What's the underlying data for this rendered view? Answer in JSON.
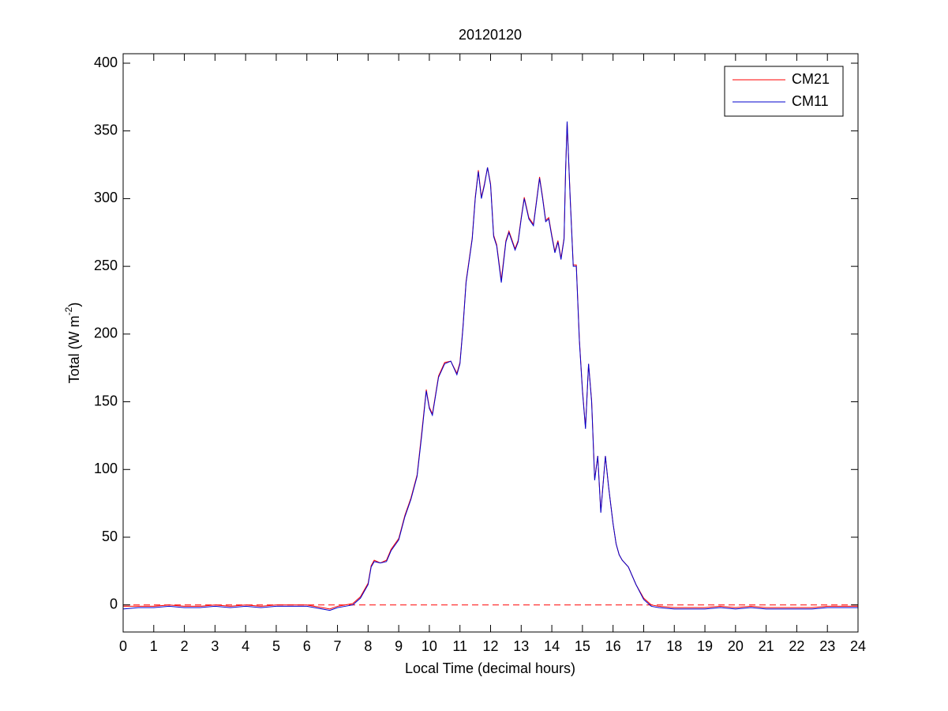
{
  "chart_data": {
    "type": "line",
    "title": "20120120",
    "xlabel": "Local Time (decimal hours)",
    "ylabel": {
      "text": "Total (W m",
      "sup": "-2",
      "end": ")"
    },
    "xlim": [
      0,
      24
    ],
    "xticks": [
      0,
      1,
      2,
      3,
      4,
      5,
      6,
      7,
      8,
      9,
      10,
      11,
      12,
      13,
      14,
      15,
      16,
      17,
      18,
      19,
      20,
      21,
      22,
      23,
      24
    ],
    "ylim": [
      -20,
      407
    ],
    "yticks": [
      0,
      50,
      100,
      150,
      200,
      250,
      300,
      350,
      400
    ],
    "legend": "northeast",
    "reference_line": {
      "value": 0,
      "color": "#ff0000",
      "style": "dashed"
    },
    "x": [
      0,
      0.5,
      1,
      1.5,
      2,
      2.5,
      3,
      3.5,
      4,
      4.5,
      5,
      5.5,
      6,
      6.5,
      6.75,
      7,
      7.25,
      7.5,
      7.75,
      8,
      8.1,
      8.2,
      8.4,
      8.6,
      8.75,
      9,
      9.2,
      9.4,
      9.6,
      9.75,
      9.9,
      10,
      10.1,
      10.3,
      10.5,
      10.7,
      10.9,
      11,
      11.1,
      11.2,
      11.4,
      11.5,
      11.6,
      11.7,
      11.8,
      11.9,
      12,
      12.1,
      12.2,
      12.35,
      12.5,
      12.6,
      12.8,
      12.9,
      13,
      13.1,
      13.25,
      13.4,
      13.6,
      13.7,
      13.8,
      13.9,
      14,
      14.1,
      14.2,
      14.3,
      14.4,
      14.45,
      14.5,
      14.6,
      14.7,
      14.8,
      14.9,
      15,
      15.1,
      15.2,
      15.3,
      15.4,
      15.5,
      15.6,
      15.75,
      15.85,
      16,
      16.1,
      16.2,
      16.3,
      16.5,
      16.75,
      17,
      17.25,
      17.5,
      18,
      18.5,
      19,
      19.5,
      20,
      20.5,
      21,
      21.5,
      22,
      22.5,
      23,
      23.5,
      24
    ],
    "series": [
      {
        "name": "CM21",
        "color": "#ff0000",
        "values": [
          -1,
          -1,
          -1,
          0,
          -1,
          -1,
          0,
          -1,
          0,
          -1,
          0,
          0,
          0,
          -2,
          -3,
          -1,
          0,
          1,
          6,
          16,
          29,
          33,
          31,
          33,
          41,
          49,
          66,
          79,
          96,
          127,
          159,
          146,
          141,
          169,
          179,
          180,
          171,
          179,
          206,
          239,
          271,
          301,
          321,
          301,
          311,
          323,
          311,
          273,
          266,
          240,
          269,
          276,
          263,
          269,
          286,
          301,
          286,
          281,
          316,
          301,
          284,
          286,
          273,
          261,
          269,
          256,
          271,
          321,
          356,
          301,
          251,
          251,
          196,
          159,
          131,
          178,
          151,
          93,
          110,
          69,
          110,
          88,
          60,
          45,
          37,
          33,
          28,
          15,
          5,
          0,
          -1,
          -2,
          -2,
          -2,
          -1,
          -2,
          -1,
          -2,
          -2,
          -2,
          -2,
          -1,
          -1,
          -1
        ]
      },
      {
        "name": "CM11",
        "color": "#0000cc",
        "values": [
          -3,
          -2,
          -2,
          -1,
          -2,
          -2,
          -1,
          -2,
          -1,
          -2,
          -1,
          -1,
          -1,
          -3,
          -4,
          -2,
          -1,
          0,
          5,
          15,
          28,
          32,
          31,
          32,
          40,
          48,
          65,
          78,
          95,
          125,
          158,
          145,
          140,
          168,
          178,
          180,
          170,
          178,
          205,
          238,
          270,
          300,
          320,
          300,
          310,
          323,
          310,
          272,
          265,
          238,
          268,
          275,
          262,
          268,
          285,
          300,
          285,
          280,
          315,
          300,
          283,
          285,
          272,
          260,
          268,
          255,
          270,
          320,
          357,
          300,
          250,
          250,
          195,
          158,
          130,
          178,
          150,
          92,
          110,
          68,
          110,
          88,
          60,
          45,
          37,
          33,
          28,
          15,
          4,
          -1,
          -2,
          -3,
          -3,
          -3,
          -2,
          -3,
          -2,
          -3,
          -3,
          -3,
          -3,
          -2,
          -2,
          -2
        ]
      }
    ]
  }
}
